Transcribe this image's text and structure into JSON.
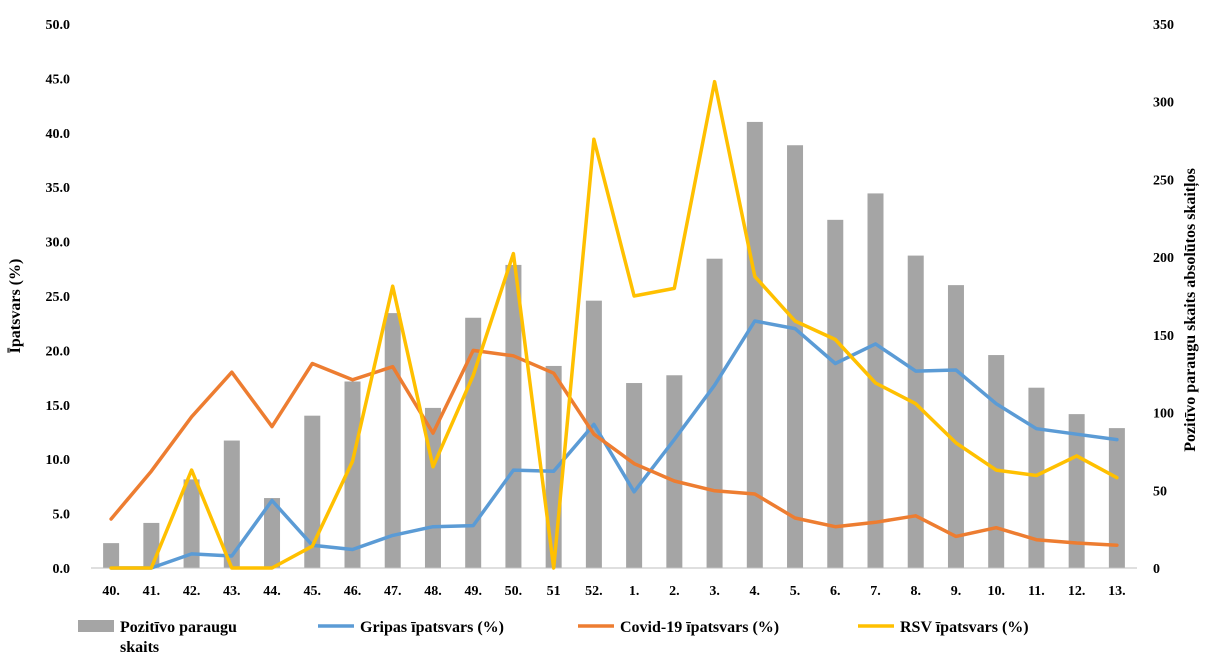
{
  "chart_data": {
    "type": "bar",
    "categories": [
      "40.",
      "41.",
      "42.",
      "43.",
      "44.",
      "45.",
      "46.",
      "47.",
      "48.",
      "49.",
      "50.",
      "51",
      "52.",
      "1.",
      "2.",
      "3.",
      "4.",
      "5.",
      "6.",
      "7.",
      "8.",
      "9.",
      "10.",
      "11.",
      "12.",
      "13."
    ],
    "ylabel": "Īpatsvars (%)",
    "y2label": "Pozitīvo paraugu skaits absolūtos skaitļos",
    "ylim": [
      0,
      50
    ],
    "y2lim": [
      0,
      350
    ],
    "yticks": [
      "0.0",
      "5.0",
      "10.0",
      "15.0",
      "20.0",
      "25.0",
      "30.0",
      "35.0",
      "40.0",
      "45.0",
      "50.0"
    ],
    "y2ticks": [
      "0",
      "50",
      "100",
      "150",
      "200",
      "250",
      "300",
      "350"
    ],
    "legend_position": "bottom",
    "series": [
      {
        "name": "Pozitīvo paraugu skaits",
        "name_lines": [
          "Pozitīvo paraugu",
          "skaits"
        ],
        "type": "bar",
        "axis": "right",
        "color": "#a5a5a5",
        "values": [
          16,
          29,
          57,
          82,
          45,
          98,
          120,
          164,
          103,
          161,
          195,
          130,
          172,
          119,
          124,
          199,
          287,
          272,
          224,
          241,
          201,
          182,
          137,
          116,
          99,
          90
        ]
      },
      {
        "name": "Gripas īpatsvars (%)",
        "name_lines": [
          "Gripas īpatsvars (%)"
        ],
        "type": "line",
        "axis": "left",
        "color": "#5b9bd5",
        "values": [
          0.0,
          0.0,
          1.3,
          1.1,
          6.2,
          2.1,
          1.7,
          3.0,
          3.8,
          3.9,
          9.0,
          8.9,
          13.2,
          7.0,
          11.8,
          16.8,
          22.7,
          22.0,
          18.8,
          20.6,
          18.1,
          18.2,
          15.1,
          12.8,
          12.3,
          11.8
        ]
      },
      {
        "name": "Covid-19 īpatsvars (%)",
        "name_lines": [
          "Covid-19 īpatsvars (%)"
        ],
        "type": "line",
        "axis": "left",
        "color": "#ed7d31",
        "values": [
          4.5,
          8.9,
          13.9,
          18.0,
          13.0,
          18.8,
          17.3,
          18.5,
          12.4,
          20.0,
          19.5,
          17.9,
          12.3,
          9.6,
          8.0,
          7.1,
          6.8,
          4.6,
          3.8,
          4.2,
          4.8,
          2.9,
          3.7,
          2.6,
          2.3,
          2.1
        ]
      },
      {
        "name": "RSV īpatsvars (%)",
        "name_lines": [
          "RSV īpatsvars (%)"
        ],
        "type": "line",
        "axis": "left",
        "color": "#ffc000",
        "values": [
          0.0,
          0.0,
          9.0,
          0.0,
          0.0,
          2.0,
          9.8,
          25.9,
          9.3,
          17.7,
          28.9,
          0.0,
          39.4,
          25.0,
          25.7,
          44.7,
          26.8,
          22.7,
          21.0,
          17.0,
          15.1,
          11.5,
          9.0,
          8.5,
          10.3,
          8.3
        ]
      }
    ]
  }
}
